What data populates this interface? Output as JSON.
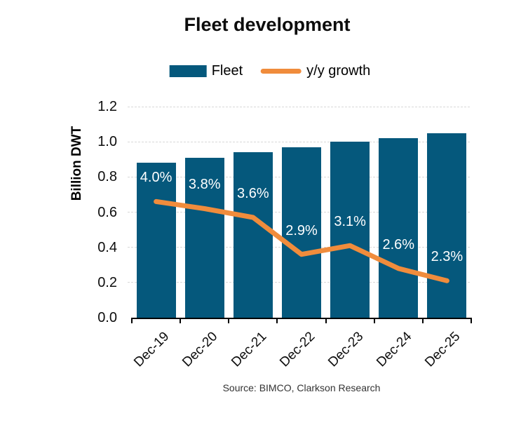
{
  "chart_data": {
    "type": "bar",
    "title": "Fleet development",
    "categories": [
      "Dec-19",
      "Dec-20",
      "Dec-21",
      "Dec-22",
      "Dec-23",
      "Dec-24",
      "Dec-25"
    ],
    "series": [
      {
        "name": "Fleet",
        "kind": "bar",
        "unit": "Billion DWT",
        "values": [
          0.88,
          0.91,
          0.94,
          0.97,
          1.0,
          1.02,
          1.05
        ]
      },
      {
        "name": "y/y growth",
        "kind": "line",
        "unit": "percent",
        "values": [
          4.0,
          3.8,
          3.6,
          2.9,
          3.1,
          2.6,
          2.3
        ],
        "labels": [
          "4.0%",
          "3.8%",
          "3.6%",
          "2.9%",
          "3.1%",
          "2.6%",
          "2.3%"
        ],
        "plotted_left_axis_equiv": [
          0.66,
          0.62,
          0.57,
          0.36,
          0.41,
          0.28,
          0.21
        ]
      }
    ],
    "xlabel": "",
    "ylabel": "Billion DWT",
    "ylim": [
      0,
      1.2
    ],
    "yticks": [
      "0.0",
      "0.2",
      "0.4",
      "0.6",
      "0.8",
      "1.0",
      "1.2"
    ],
    "grid": "horizontal dotted",
    "legend_position": "top center",
    "source": "Source: BIMCO, Clarkson Research",
    "colors": {
      "bar": "#05587C",
      "line": "#F08C3C",
      "grid": "#D8D8D8",
      "axis": "#000000",
      "pct_label": "#FFFFFF"
    }
  }
}
